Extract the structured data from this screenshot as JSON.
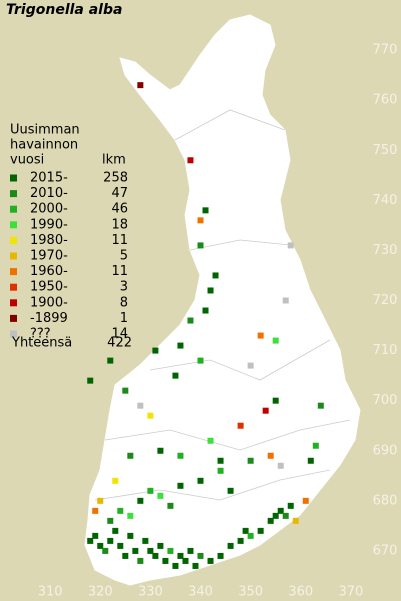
{
  "title": "Trigonella alba",
  "legend": {
    "header": [
      "Uusimman",
      "havainnon",
      "vuosi"
    ],
    "count_header": "lkm",
    "entries": [
      {
        "name": "2015-",
        "count": 258,
        "color": "#006400"
      },
      {
        "name": "2010-",
        "count": 47,
        "color": "#1b8a1b"
      },
      {
        "name": "2000-",
        "count": 46,
        "color": "#22b022"
      },
      {
        "name": "1990-",
        "count": 18,
        "color": "#3ce03c"
      },
      {
        "name": "1980-",
        "count": 11,
        "color": "#f0e400"
      },
      {
        "name": "1970-",
        "count": 5,
        "color": "#e8b800"
      },
      {
        "name": "1960-",
        "count": 11,
        "color": "#f07000"
      },
      {
        "name": "1950-",
        "count": 3,
        "color": "#e03000"
      },
      {
        "name": "1900-",
        "count": 8,
        "color": "#c00000"
      },
      {
        "name": "-1899",
        "count": 1,
        "color": "#800000"
      },
      {
        "name": "???",
        "count": 14,
        "color": "#c0c0c0"
      }
    ],
    "total": {
      "label": "Yhteensä",
      "count": 422
    }
  },
  "map": {
    "xlim": [
      300,
      380
    ],
    "ylim": [
      660,
      780
    ],
    "xticks": [
      310,
      320,
      330,
      340,
      350,
      360,
      370
    ],
    "yticks": [
      670,
      680,
      690,
      700,
      710,
      720,
      730,
      740,
      750,
      760,
      770
    ],
    "cells": [
      [
        318,
        672,
        0
      ],
      [
        319,
        673,
        0
      ],
      [
        320,
        671,
        0
      ],
      [
        321,
        670,
        1
      ],
      [
        322,
        672,
        0
      ],
      [
        323,
        674,
        0
      ],
      [
        324,
        671,
        0
      ],
      [
        325,
        669,
        0
      ],
      [
        326,
        673,
        0
      ],
      [
        327,
        670,
        0
      ],
      [
        328,
        668,
        1
      ],
      [
        329,
        672,
        0
      ],
      [
        330,
        670,
        0
      ],
      [
        331,
        669,
        0
      ],
      [
        332,
        671,
        0
      ],
      [
        333,
        668,
        0
      ],
      [
        334,
        670,
        2
      ],
      [
        335,
        667,
        0
      ],
      [
        336,
        669,
        0
      ],
      [
        337,
        668,
        0
      ],
      [
        338,
        670,
        0
      ],
      [
        339,
        667,
        0
      ],
      [
        340,
        669,
        1
      ],
      [
        342,
        668,
        0
      ],
      [
        344,
        669,
        0
      ],
      [
        346,
        671,
        0
      ],
      [
        348,
        672,
        0
      ],
      [
        349,
        674,
        0
      ],
      [
        350,
        673,
        2
      ],
      [
        352,
        674,
        0
      ],
      [
        354,
        676,
        0
      ],
      [
        355,
        677,
        0
      ],
      [
        356,
        678,
        0
      ],
      [
        357,
        677,
        1
      ],
      [
        358,
        679,
        0
      ],
      [
        359,
        676,
        5
      ],
      [
        361,
        680,
        6
      ],
      [
        322,
        676,
        1
      ],
      [
        324,
        678,
        2
      ],
      [
        326,
        677,
        3
      ],
      [
        328,
        680,
        0
      ],
      [
        330,
        682,
        2
      ],
      [
        332,
        681,
        3
      ],
      [
        334,
        679,
        1
      ],
      [
        320,
        680,
        5
      ],
      [
        319,
        678,
        6
      ],
      [
        323,
        684,
        4
      ],
      [
        336,
        683,
        0
      ],
      [
        340,
        684,
        0
      ],
      [
        344,
        686,
        2
      ],
      [
        346,
        682,
        0
      ],
      [
        350,
        688,
        1
      ],
      [
        354,
        689,
        6
      ],
      [
        356,
        687,
        10
      ],
      [
        362,
        688,
        0
      ],
      [
        363,
        691,
        2
      ],
      [
        348,
        695,
        7
      ],
      [
        353,
        698,
        8
      ],
      [
        355,
        700,
        0
      ],
      [
        364,
        699,
        1
      ],
      [
        342,
        692,
        3
      ],
      [
        328,
        699,
        10
      ],
      [
        330,
        697,
        4
      ],
      [
        325,
        702,
        1
      ],
      [
        318,
        704,
        0
      ],
      [
        322,
        708,
        0
      ],
      [
        331,
        710,
        0
      ],
      [
        336,
        711,
        0
      ],
      [
        338,
        716,
        1
      ],
      [
        341,
        718,
        0
      ],
      [
        342,
        722,
        0
      ],
      [
        343,
        725,
        0
      ],
      [
        340,
        731,
        1
      ],
      [
        355,
        712,
        3
      ],
      [
        357,
        720,
        10
      ],
      [
        358,
        731,
        10
      ],
      [
        352,
        713,
        6
      ],
      [
        340,
        736,
        6
      ],
      [
        341,
        738,
        0
      ],
      [
        338,
        748,
        8
      ],
      [
        328,
        763,
        9
      ],
      [
        350,
        707,
        10
      ],
      [
        335,
        705,
        0
      ],
      [
        340,
        708,
        2
      ],
      [
        326,
        689,
        1
      ],
      [
        332,
        690,
        0
      ],
      [
        336,
        689,
        2
      ],
      [
        344,
        688,
        0
      ]
    ]
  }
}
